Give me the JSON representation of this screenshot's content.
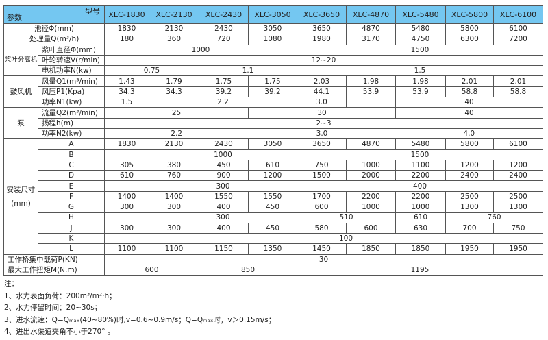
{
  "header": {
    "corner_top": "型号",
    "corner_bottom": "参数",
    "models": [
      "XLC-1830",
      "XLC-2130",
      "XLC-2430",
      "XLC-3050",
      "XLC-3650",
      "XLC-4870",
      "XLC-5480",
      "XLC-5800",
      "XLC-6100"
    ]
  },
  "sections": [
    {
      "group": "",
      "rows": [
        {
          "label": "池径Φ(mm)",
          "cells": [
            {
              "v": "1830",
              "s": 1
            },
            {
              "v": "2130",
              "s": 1
            },
            {
              "v": "2430",
              "s": 1
            },
            {
              "v": "3050",
              "s": 1
            },
            {
              "v": "3650",
              "s": 1
            },
            {
              "v": "4870",
              "s": 1
            },
            {
              "v": "5480",
              "s": 1
            },
            {
              "v": "5800",
              "s": 1
            },
            {
              "v": "6100",
              "s": 1
            }
          ]
        }
      ]
    },
    {
      "group": "",
      "rows": [
        {
          "label": "处理量Q(m³/h)",
          "cells": [
            {
              "v": "180",
              "s": 1
            },
            {
              "v": "360",
              "s": 1
            },
            {
              "v": "720",
              "s": 1
            },
            {
              "v": "1080",
              "s": 1
            },
            {
              "v": "1980",
              "s": 1
            },
            {
              "v": "3170",
              "s": 1
            },
            {
              "v": "4750",
              "s": 1
            },
            {
              "v": "6300",
              "s": 1
            },
            {
              "v": "7200",
              "s": 1
            }
          ]
        }
      ]
    },
    {
      "group": "浆叶分离机",
      "rows": [
        {
          "label": "浆叶直径Φ(mm)",
          "cells": [
            {
              "v": "1000",
              "s": 4
            },
            {
              "v": "1500",
              "s": 5
            }
          ]
        },
        {
          "label": "叶轮转速V(r/min)",
          "cells": [
            {
              "v": "12~20",
              "s": 9
            }
          ]
        },
        {
          "label": "电机功率N(kw)",
          "cells": [
            {
              "v": "0.75",
              "s": 2
            },
            {
              "v": "1.1",
              "s": 2
            },
            {
              "v": "1.5",
              "s": 5
            }
          ]
        }
      ]
    },
    {
      "group": "鼓风机",
      "rows": [
        {
          "label": "风量Q1(m³/min)",
          "cells": [
            {
              "v": "1.43",
              "s": 1
            },
            {
              "v": "1.79",
              "s": 1
            },
            {
              "v": "1.75",
              "s": 1
            },
            {
              "v": "1.75",
              "s": 1
            },
            {
              "v": "2.03",
              "s": 1
            },
            {
              "v": "1.98",
              "s": 1
            },
            {
              "v": "1.98",
              "s": 1
            },
            {
              "v": "2.01",
              "s": 1
            },
            {
              "v": "2.01",
              "s": 1
            }
          ]
        },
        {
          "label": "风压P1(Kpa)",
          "cells": [
            {
              "v": "34.3",
              "s": 1
            },
            {
              "v": "34.3",
              "s": 1
            },
            {
              "v": "39.2",
              "s": 1
            },
            {
              "v": "39.2",
              "s": 1
            },
            {
              "v": "44.1",
              "s": 1
            },
            {
              "v": "53.9",
              "s": 1
            },
            {
              "v": "53.9",
              "s": 1
            },
            {
              "v": "58.8",
              "s": 1
            },
            {
              "v": "58.8",
              "s": 1
            }
          ]
        },
        {
          "label": "功率N1(kw)",
          "cells": [
            {
              "v": "1.5",
              "s": 1
            },
            {
              "v": "2.2",
              "s": 3
            },
            {
              "v": "3.0",
              "s": 1
            },
            {
              "v": "",
              "s": 1
            },
            {
              "v": "40",
              "s": 3
            }
          ]
        }
      ]
    },
    {
      "group": "泵",
      "rows": [
        {
          "label": "流量Q2(m³/min)",
          "cells": [
            {
              "v": "25",
              "s": 3
            },
            {
              "v": "30",
              "s": 3
            },
            {
              "v": "40",
              "s": 3
            }
          ]
        },
        {
          "label": "扬程h(m)",
          "cells": [
            {
              "v": "2~3",
              "s": 9
            }
          ]
        },
        {
          "label": "功率N2(kw)",
          "nob": true,
          "cells": [
            {
              "v": "2.2",
              "s": 3
            },
            {
              "v": "3.0",
              "s": 3
            },
            {
              "v": "4.0",
              "s": 3
            }
          ]
        }
      ]
    },
    {
      "group": "安装尺寸(mm)",
      "center": true,
      "rows": [
        {
          "label": "A",
          "cells": [
            {
              "v": "1830",
              "s": 1
            },
            {
              "v": "2130",
              "s": 1
            },
            {
              "v": "2430",
              "s": 1
            },
            {
              "v": "3050",
              "s": 1
            },
            {
              "v": "3650",
              "s": 1
            },
            {
              "v": "4870",
              "s": 1
            },
            {
              "v": "5480",
              "s": 1
            },
            {
              "v": "5800",
              "s": 1
            },
            {
              "v": "6100",
              "s": 1
            }
          ]
        },
        {
          "label": "B",
          "cells": [
            {
              "v": "",
              "s": 1
            },
            {
              "v": "1000",
              "s": 3
            },
            {
              "v": "1500",
              "s": 5
            }
          ]
        },
        {
          "label": "C",
          "cells": [
            {
              "v": "305",
              "s": 1
            },
            {
              "v": "380",
              "s": 1
            },
            {
              "v": "450",
              "s": 1
            },
            {
              "v": "610",
              "s": 1
            },
            {
              "v": "750",
              "s": 1
            },
            {
              "v": "1000",
              "s": 1
            },
            {
              "v": "1100",
              "s": 1
            },
            {
              "v": "1200",
              "s": 1
            },
            {
              "v": "1200",
              "s": 1
            }
          ]
        },
        {
          "label": "D",
          "cells": [
            {
              "v": "610",
              "s": 1
            },
            {
              "v": "760",
              "s": 1
            },
            {
              "v": "900",
              "s": 1
            },
            {
              "v": "1200",
              "s": 1
            },
            {
              "v": "1500",
              "s": 1
            },
            {
              "v": "2000",
              "s": 1
            },
            {
              "v": "2200",
              "s": 1
            },
            {
              "v": "2400",
              "s": 1
            },
            {
              "v": "2400",
              "s": 1
            }
          ]
        },
        {
          "label": "E",
          "cells": [
            {
              "v": "",
              "s": 1
            },
            {
              "v": "300",
              "s": 3
            },
            {
              "v": "400",
              "s": 5
            }
          ]
        },
        {
          "label": "F",
          "cells": [
            {
              "v": "1400",
              "s": 1
            },
            {
              "v": "1400",
              "s": 1
            },
            {
              "v": "1550",
              "s": 1
            },
            {
              "v": "1550",
              "s": 1
            },
            {
              "v": "1700",
              "s": 1
            },
            {
              "v": "2200",
              "s": 1
            },
            {
              "v": "2200",
              "s": 1
            },
            {
              "v": "2500",
              "s": 1
            },
            {
              "v": "2500",
              "s": 1
            }
          ]
        },
        {
          "label": "G",
          "cells": [
            {
              "v": "300",
              "s": 1
            },
            {
              "v": "300",
              "s": 1
            },
            {
              "v": "400",
              "s": 1
            },
            {
              "v": "450",
              "s": 1
            },
            {
              "v": "600",
              "s": 1
            },
            {
              "v": "1000",
              "s": 1
            },
            {
              "v": "1000",
              "s": 1
            },
            {
              "v": "1300",
              "s": 1
            },
            {
              "v": "1300",
              "s": 1
            }
          ]
        },
        {
          "label": "H",
          "cells": [
            {
              "v": "",
              "s": 1
            },
            {
              "v": "300",
              "s": 3
            },
            {
              "v": "510",
              "s": 2
            },
            {
              "v": "610",
              "s": 1
            },
            {
              "v": "760",
              "s": 2
            }
          ]
        },
        {
          "label": "J",
          "cells": [
            {
              "v": "300",
              "s": 1
            },
            {
              "v": "300",
              "s": 1
            },
            {
              "v": "400",
              "s": 1
            },
            {
              "v": "450",
              "s": 1
            },
            {
              "v": "580",
              "s": 1
            },
            {
              "v": "600",
              "s": 1
            },
            {
              "v": "630",
              "s": 1
            },
            {
              "v": "700",
              "s": 1
            },
            {
              "v": "750",
              "s": 1
            }
          ]
        },
        {
          "label": "K",
          "cells": [
            {
              "v": "",
              "s": 1
            },
            {
              "v": "100",
              "s": 8
            }
          ]
        },
        {
          "label": "L",
          "cells": [
            {
              "v": "1100",
              "s": 1
            },
            {
              "v": "1100",
              "s": 1
            },
            {
              "v": "1150",
              "s": 1
            },
            {
              "v": "1350",
              "s": 1
            },
            {
              "v": "1450",
              "s": 1
            },
            {
              "v": "1850",
              "s": 1
            },
            {
              "v": "1850",
              "s": 1
            },
            {
              "v": "1950",
              "s": 1
            },
            {
              "v": "1950",
              "s": 1
            }
          ]
        }
      ]
    },
    {
      "group": "",
      "left": true,
      "rows": [
        {
          "label": "工作桥集中载荷P(KN)",
          "cells": [
            {
              "v": "30",
              "s": 9
            }
          ]
        }
      ]
    },
    {
      "group": "",
      "left": true,
      "rows": [
        {
          "label": "最大工作扭矩M(N.m)",
          "cells": [
            {
              "v": "600",
              "s": 2
            },
            {
              "v": "850",
              "s": 2
            },
            {
              "v": "1195",
              "s": 5
            }
          ]
        }
      ]
    }
  ],
  "notes": {
    "title": "注：",
    "items": [
      "1、水力表面负荷：200m³/m²·h；",
      "2、水力停留时间：20~30s；",
      "3、进水流速：Q=Qₘₐₓ(40~80%)时,v=0.6~0.9m/s；Q=Qₘₐₓ时，v＞0.15m/s；",
      "4、进出水渠道夹角不小于270° 。"
    ]
  },
  "colors": {
    "header_bg": "#74c7f1",
    "border": "#555555"
  }
}
